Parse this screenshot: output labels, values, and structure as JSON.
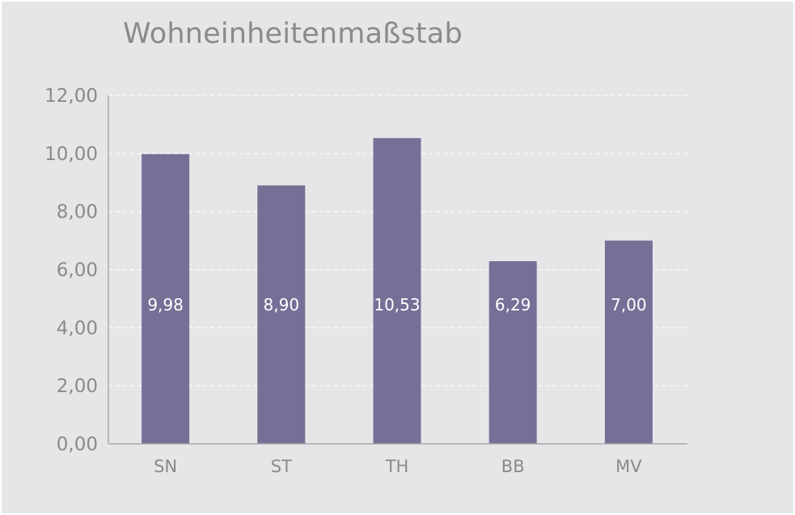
{
  "chart_data": {
    "type": "bar",
    "title": "Wohneinheitenmaßstab",
    "xlabel": "",
    "ylabel": "",
    "categories": [
      "SN",
      "ST",
      "TH",
      "BB",
      "MV"
    ],
    "values": [
      9.98,
      8.9,
      10.53,
      6.29,
      7.0
    ],
    "value_labels": [
      "9,98",
      "8,90",
      "10,53",
      "6,29",
      "7,00"
    ],
    "ylim": [
      0,
      12
    ],
    "yticks": [
      0,
      2,
      4,
      6,
      8,
      10,
      12
    ],
    "ytick_labels": [
      "0,00",
      "2,00",
      "4,00",
      "6,00",
      "8,00",
      "10,00",
      "12,00"
    ],
    "grid": true,
    "legend": "none",
    "bar_color": "#766f96",
    "background_color": "#e6e6e8"
  }
}
